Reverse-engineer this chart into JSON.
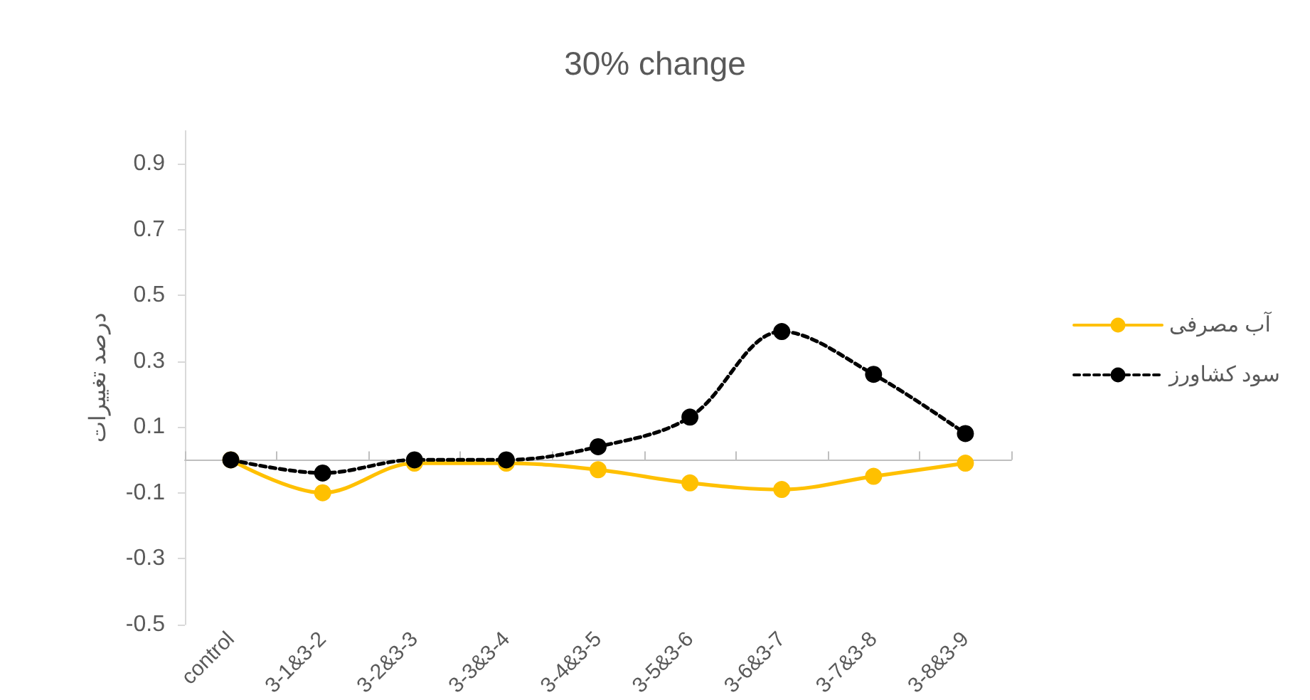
{
  "chart_data": {
    "type": "line",
    "title": "30% change",
    "ylabel": "درصد تغییرات",
    "categories": [
      "control",
      "3-1&3-2",
      "3-2&3-3",
      "3-3&3-4",
      "3-4&3-5",
      "3-5&3-6",
      "3-6&3-7",
      "3-7&3-8",
      "3-8&3-9"
    ],
    "series": [
      {
        "name": "آب مصرفی",
        "color": "#ffc000",
        "line_style": "solid",
        "values": [
          0,
          -0.1,
          -0.01,
          -0.01,
          -0.03,
          -0.07,
          -0.09,
          -0.05,
          -0.01
        ]
      },
      {
        "name": "سود کشاورز",
        "color": "#000000",
        "line_style": "dashed",
        "values": [
          0,
          -0.04,
          0,
          0,
          0.04,
          0.13,
          0.39,
          0.26,
          0.08
        ]
      }
    ],
    "ylim": [
      -0.5,
      1.0
    ],
    "yticks": [
      -0.5,
      -0.3,
      -0.1,
      0.1,
      0.3,
      0.5,
      0.7,
      0.9
    ],
    "grid": false,
    "legend": "right",
    "marker": "circle"
  }
}
